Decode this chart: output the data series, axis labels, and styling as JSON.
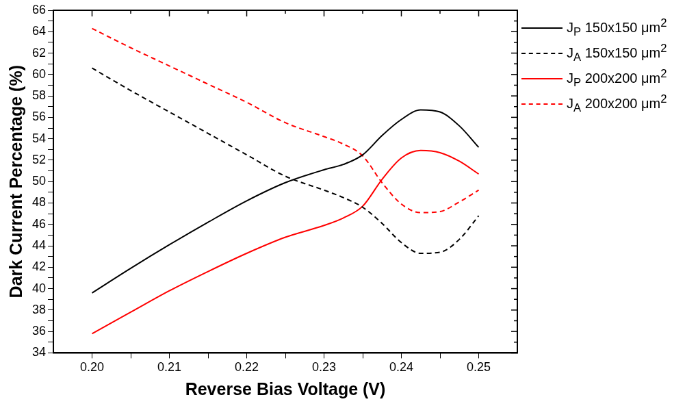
{
  "chart_data": {
    "type": "line",
    "xlabel": "Reverse Bias Voltage (V)",
    "ylabel": "Dark Current Percentage (%)",
    "x": [
      0.2,
      0.205,
      0.21,
      0.215,
      0.22,
      0.225,
      0.23,
      0.2325,
      0.235,
      0.2375,
      0.24,
      0.2425,
      0.245,
      0.2475,
      0.25
    ],
    "series": [
      {
        "name": "J$_{P}$ 150x150 μm$^{2}$",
        "color": "#000000",
        "line_style": "solid",
        "values": [
          39.6,
          41.9,
          44.1,
          46.2,
          48.2,
          49.9,
          51.1,
          51.6,
          52.5,
          54.3,
          55.8,
          56.7,
          56.5,
          55.2,
          53.2
        ]
      },
      {
        "name": "J$_{A}$ 150x150 μm$^{2}$",
        "color": "#000000",
        "line_style": "dashed",
        "values": [
          60.6,
          58.5,
          56.5,
          54.5,
          52.5,
          50.5,
          49.2,
          48.5,
          47.6,
          46.1,
          44.3,
          43.3,
          43.4,
          44.6,
          46.8
        ]
      },
      {
        "name": "J$_{P}$ 200x200 μm$^{2}$",
        "color": "#ff0000",
        "line_style": "solid",
        "values": [
          35.8,
          37.8,
          39.8,
          41.6,
          43.3,
          44.8,
          45.9,
          46.6,
          47.7,
          50.2,
          52.2,
          52.9,
          52.7,
          51.9,
          50.7
        ]
      },
      {
        "name": "J$_{A}$ 200x200 μm$^{2}$",
        "color": "#ff0000",
        "line_style": "dashed",
        "values": [
          64.3,
          62.5,
          60.8,
          59.1,
          57.4,
          55.5,
          54.2,
          53.5,
          52.4,
          49.9,
          47.9,
          47.1,
          47.2,
          48.1,
          49.2
        ]
      }
    ],
    "xlim": [
      0.195,
      0.255
    ],
    "xticks": [
      {
        "value": 0.2,
        "label": "0.20"
      },
      {
        "value": 0.205,
        "label": null
      },
      {
        "value": 0.21,
        "label": "0.21"
      },
      {
        "value": 0.215,
        "label": null
      },
      {
        "value": 0.22,
        "label": "0.22"
      },
      {
        "value": 0.225,
        "label": null
      },
      {
        "value": 0.23,
        "label": "0.23"
      },
      {
        "value": 0.235,
        "label": null
      },
      {
        "value": 0.24,
        "label": "0.24"
      },
      {
        "value": 0.245,
        "label": null
      },
      {
        "value": 0.25,
        "label": "0.25"
      }
    ],
    "ylim": [
      34,
      66
    ],
    "yticks": [
      34,
      {
        "value": 35,
        "label": null
      },
      36,
      {
        "value": 37,
        "label": null
      },
      38,
      {
        "value": 39,
        "label": null
      },
      40,
      {
        "value": 41,
        "label": null
      },
      42,
      {
        "value": 43,
        "label": null
      },
      44,
      {
        "value": 45,
        "label": null
      },
      46,
      {
        "value": 47,
        "label": null
      },
      48,
      {
        "value": 49,
        "label": null
      },
      50,
      {
        "value": 51,
        "label": null
      },
      52,
      {
        "value": 53,
        "label": null
      },
      54,
      {
        "value": 55,
        "label": null
      },
      56,
      {
        "value": 57,
        "label": null
      },
      58,
      {
        "value": 59,
        "label": null
      },
      60,
      {
        "value": 61,
        "label": null
      },
      62,
      {
        "value": 63,
        "label": null
      },
      64,
      {
        "value": 65,
        "label": null
      },
      66
    ],
    "grid": false,
    "legend": "right",
    "marker": "none"
  }
}
